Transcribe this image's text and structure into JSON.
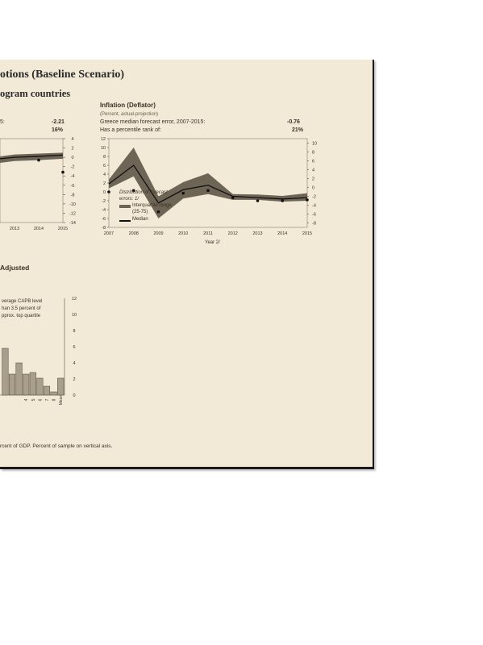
{
  "header": {
    "title": "otions (Baseline Scenario)",
    "subtitle": "ogram countries",
    "adjusted_label": "Adjusted",
    "footnote": "rcent of GDP. Percent of sample on vertical axis."
  },
  "left_top_panel": {
    "error_prefix": "5:",
    "error_value": "-2.21",
    "rank_value": "16%"
  },
  "inflation_panel": {
    "title": "Inflation (Deflator)",
    "subtitle": "(Percent, actual-projection)",
    "error_label": "Greece median forecast error, 2007-2015:",
    "error_value": "-0.76",
    "rank_label": "Has a percentile rank of:",
    "rank_value": "21%",
    "legend_title_1": "Distribution of forecast",
    "legend_title_2": "errors: 1/",
    "legend_iqr_1": "Interquartile range",
    "legend_iqr_2": "(25-75)",
    "legend_median": "Median",
    "xlabel": "Year 2/"
  },
  "capb_panel": {
    "annotation_1": "verage CAPB level",
    "annotation_2": "han 3.5 percent of",
    "annotation_3": "pprox. top quartile"
  },
  "chart_data": [
    {
      "type": "line",
      "x": [
        2013,
        2014,
        2015
      ],
      "x_tick_labels": [
        "2013",
        "2014",
        "2015"
      ],
      "y_tick_labels": [
        "4",
        "2",
        "0",
        "-2",
        "-4",
        "-6",
        "-8",
        "-10",
        "-12",
        "-14"
      ],
      "ylim": [
        -14,
        4
      ],
      "series": [
        {
          "values": [
            0.0,
            0.2,
            0.5
          ]
        }
      ],
      "band_low": [
        -0.8,
        -0.6,
        -0.3
      ],
      "band_high": [
        0.6,
        0.8,
        1.0
      ],
      "points": [
        {
          "x": 2014,
          "y": -0.6
        },
        {
          "x": 2015,
          "y": -3.2
        }
      ]
    },
    {
      "type": "line",
      "title": "Inflation (Deflator)",
      "x": [
        2007,
        2008,
        2009,
        2010,
        2011,
        2012,
        2013,
        2014,
        2015
      ],
      "x_tick_labels": [
        "2007",
        "2008",
        "2009",
        "2010",
        "2011",
        "2012",
        "2013",
        "2014",
        "2015"
      ],
      "xlabel": "Year 2/",
      "y_left_ticks": [
        "12",
        "10",
        "8",
        "6",
        "4",
        "2",
        "0",
        "-2",
        "-4",
        "-6",
        "-8"
      ],
      "y_right_ticks": [
        "10",
        "8",
        "6",
        "4",
        "2",
        "0",
        "-2",
        "-4",
        "-6",
        "-8"
      ],
      "ylim": [
        -8,
        12
      ],
      "series": [
        {
          "name": "Median",
          "values": [
            1.8,
            6.0,
            -2.5,
            0.5,
            1.5,
            -1.0,
            -1.3,
            -1.6,
            -1.3
          ]
        }
      ],
      "band_low": [
        0.8,
        3.5,
        -6.0,
        -1.5,
        -0.5,
        -1.8,
        -1.8,
        -2.2,
        -2.0
      ],
      "band_high": [
        2.8,
        10.0,
        -1.0,
        2.2,
        4.2,
        -0.5,
        -0.6,
        -0.9,
        -0.3
      ],
      "points": [
        {
          "x": 2007,
          "y": 0.0
        },
        {
          "x": 2008,
          "y": 0.3
        },
        {
          "x": 2009,
          "y": -4.5
        },
        {
          "x": 2010,
          "y": -0.3
        },
        {
          "x": 2011,
          "y": 0.3
        },
        {
          "x": 2012,
          "y": -1.3
        },
        {
          "x": 2013,
          "y": -2.0
        },
        {
          "x": 2014,
          "y": -2.0
        },
        {
          "x": 2015,
          "y": -1.8
        }
      ],
      "legend_placement": "bottom-left"
    },
    {
      "type": "bar",
      "categories": [
        "",
        "",
        "",
        "",
        "",
        "",
        "",
        "",
        "Mean"
      ],
      "x_tick_labels": [
        "",
        "4",
        "5",
        "6",
        "7",
        "8",
        "Mean"
      ],
      "y_tick_labels": [
        "12",
        "10",
        "8",
        "6",
        "4",
        "2",
        "0"
      ],
      "ylim": [
        0,
        12
      ],
      "values": [
        5.8,
        2.6,
        4.0,
        2.6,
        2.8,
        2.1,
        1.1,
        0.4,
        2.1
      ]
    }
  ]
}
